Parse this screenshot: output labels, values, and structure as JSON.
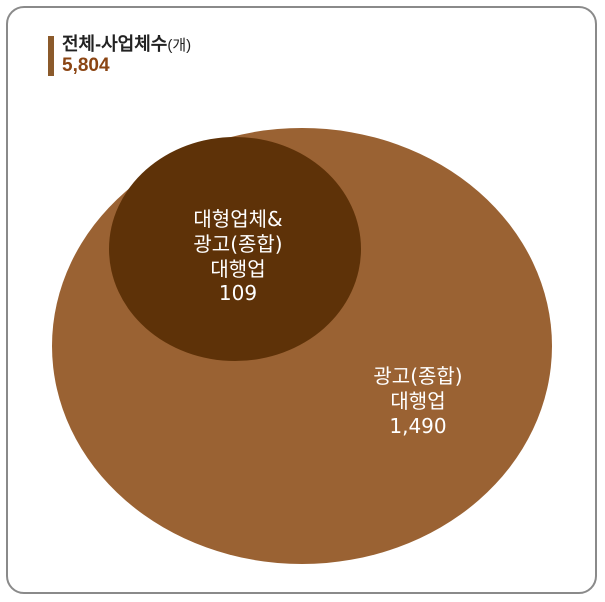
{
  "legend": {
    "title": "전체-사업체수",
    "unit": "(개)",
    "value": "5,804",
    "color": "#8b5a2b"
  },
  "outer_circle": {
    "color": "#9a6233",
    "lines": [
      "광고(종합)",
      "대행업",
      "1,490"
    ]
  },
  "inner_circle": {
    "color": "#5e3208",
    "lines": [
      "대형업체&",
      "광고(종합)",
      "대행업",
      "109"
    ]
  }
}
